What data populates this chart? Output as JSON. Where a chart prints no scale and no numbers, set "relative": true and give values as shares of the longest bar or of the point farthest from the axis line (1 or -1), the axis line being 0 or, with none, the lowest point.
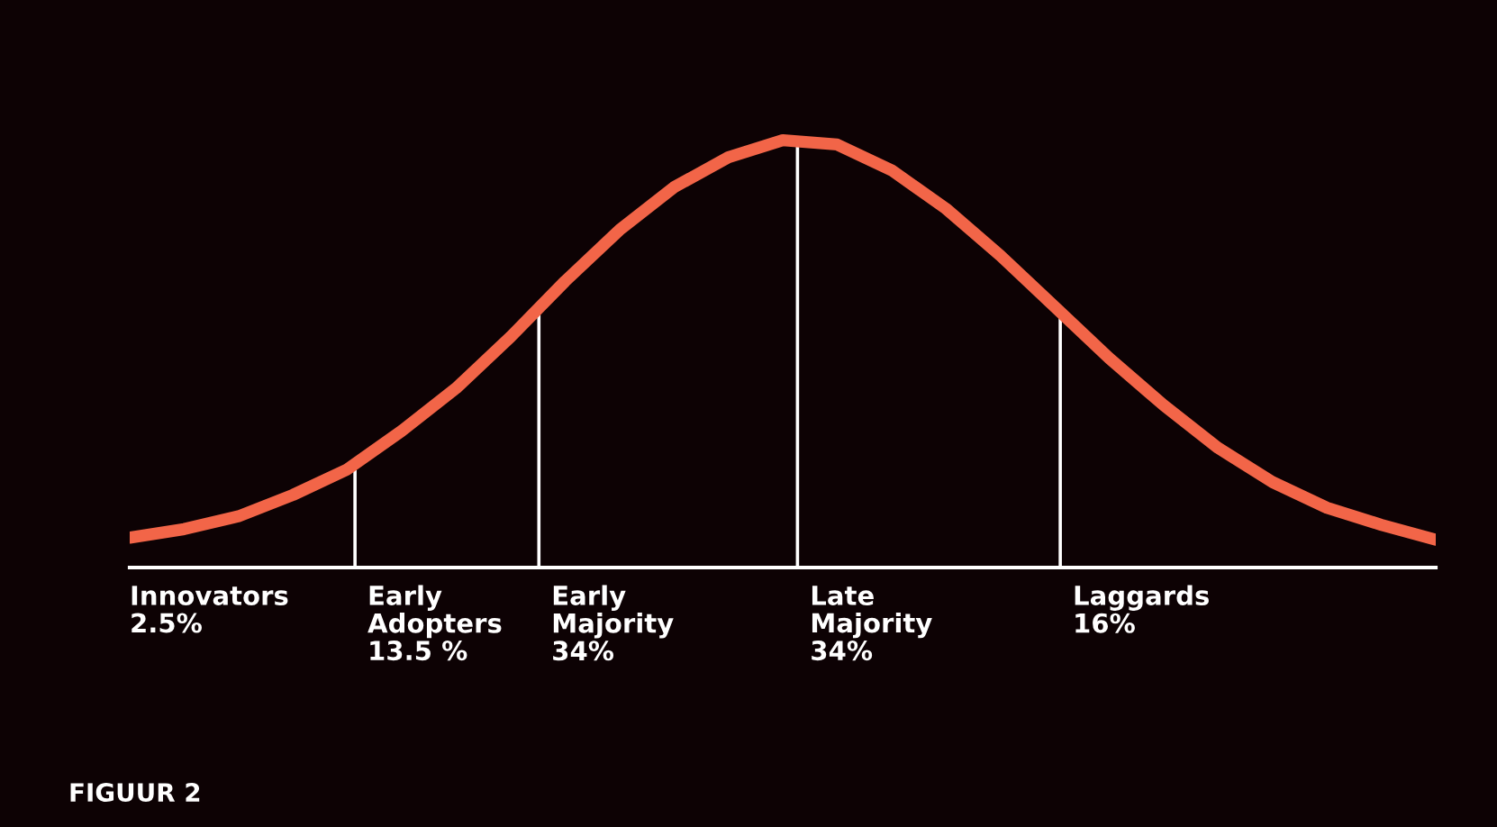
{
  "chart_data": {
    "type": "line",
    "relative": true,
    "categories": [
      null,
      null,
      null,
      null,
      null,
      null,
      null,
      null,
      null,
      null,
      null,
      null,
      null,
      null,
      null,
      null,
      null,
      null,
      null,
      null,
      null,
      null,
      null,
      null,
      null
    ],
    "series": [
      {
        "color": "#f26548",
        "values": [
          0.07,
          0.09,
          0.12,
          0.17,
          0.23,
          0.32,
          0.42,
          0.54,
          0.67,
          0.79,
          0.89,
          0.96,
          1.0,
          0.99,
          0.93,
          0.84,
          0.73,
          0.61,
          0.49,
          0.38,
          0.28,
          0.2,
          0.14,
          0.1,
          0.065
        ]
      }
    ],
    "annotations": [
      "Innovators\n2.5%",
      "Early\nAdopters\n13.5 %",
      "Early\nMajority\n34%",
      "Late\nMajority\n34%",
      "Laggards\n16%",
      "FIGUUR 2"
    ],
    "legend": false,
    "marker": "none",
    "line_style": "solid"
  }
}
